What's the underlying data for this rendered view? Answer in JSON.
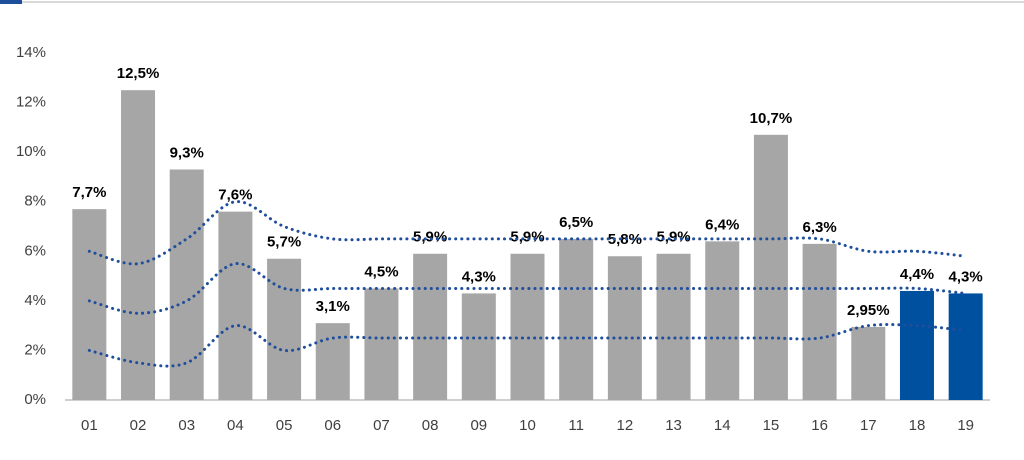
{
  "chart_data": {
    "type": "bar",
    "categories": [
      "01",
      "02",
      "03",
      "04",
      "05",
      "06",
      "07",
      "08",
      "09",
      "10",
      "11",
      "12",
      "13",
      "14",
      "15",
      "16",
      "17",
      "18",
      "19"
    ],
    "values": [
      7.7,
      12.5,
      9.3,
      7.6,
      5.7,
      3.1,
      4.5,
      5.9,
      4.3,
      5.9,
      6.5,
      5.8,
      5.9,
      6.4,
      10.7,
      6.3,
      2.95,
      4.4,
      4.3
    ],
    "value_labels": [
      "7,7%",
      "12,5%",
      "9,3%",
      "7,6%",
      "5,7%",
      "3,1%",
      "4,5%",
      "5,9%",
      "4,3%",
      "5,9%",
      "6,5%",
      "5,8%",
      "5,9%",
      "6,4%",
      "10,7%",
      "6,3%",
      "2,95%",
      "4,4%",
      "4,3%"
    ],
    "colors": [
      "#a6a6a6",
      "#a6a6a6",
      "#a6a6a6",
      "#a6a6a6",
      "#a6a6a6",
      "#a6a6a6",
      "#a6a6a6",
      "#a6a6a6",
      "#a6a6a6",
      "#a6a6a6",
      "#a6a6a6",
      "#a6a6a6",
      "#a6a6a6",
      "#a6a6a6",
      "#a6a6a6",
      "#a6a6a6",
      "#a6a6a6",
      "#0050a0",
      "#0050a0"
    ],
    "ylim": [
      0,
      14
    ],
    "yticks": [
      {
        "value": 0,
        "label": "0%"
      },
      {
        "value": 2,
        "label": "2%"
      },
      {
        "value": 4,
        "label": "4%"
      },
      {
        "value": 6,
        "label": "6%"
      },
      {
        "value": 8,
        "label": "8%"
      },
      {
        "value": 10,
        "label": "10%"
      },
      {
        "value": 12,
        "label": "12%"
      },
      {
        "value": 14,
        "label": "14%"
      }
    ],
    "lines": [
      {
        "color": "#1f4e9c",
        "style": "dotted",
        "values": [
          6.0,
          5.5,
          6.5,
          8.0,
          7.0,
          6.5,
          6.5,
          6.5,
          6.5,
          6.5,
          6.5,
          6.5,
          6.5,
          6.5,
          6.5,
          6.5,
          6.0,
          6.0,
          5.8
        ]
      },
      {
        "color": "#1f4e9c",
        "style": "dotted",
        "values": [
          4.0,
          3.5,
          4.0,
          5.5,
          4.5,
          4.5,
          4.5,
          4.5,
          4.5,
          4.5,
          4.5,
          4.5,
          4.5,
          4.5,
          4.5,
          4.5,
          4.5,
          4.5,
          4.3
        ]
      },
      {
        "color": "#1f4e9c",
        "style": "dotted",
        "values": [
          2.0,
          1.5,
          1.5,
          3.0,
          2.0,
          2.5,
          2.5,
          2.5,
          2.5,
          2.5,
          2.5,
          2.5,
          2.5,
          2.5,
          2.5,
          2.5,
          3.0,
          3.0,
          2.8
        ]
      }
    ]
  }
}
